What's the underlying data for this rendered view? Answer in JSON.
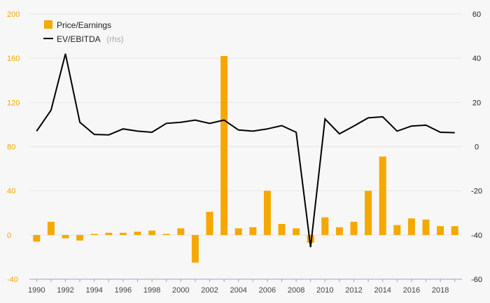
{
  "chart_data": {
    "type": "bar",
    "x": [
      1990,
      1991,
      1992,
      1993,
      1994,
      1995,
      1996,
      1997,
      1998,
      1999,
      2000,
      2001,
      2002,
      2003,
      2004,
      2005,
      2006,
      2007,
      2008,
      2009,
      2010,
      2011,
      2012,
      2013,
      2014,
      2015,
      2016,
      2017,
      2018,
      2019
    ],
    "x_tick_labels": [
      "1990",
      "1992",
      "1994",
      "1996",
      "1998",
      "2000",
      "2002",
      "2004",
      "2006",
      "2008",
      "2010",
      "2012",
      "2014",
      "2016",
      "2018"
    ],
    "series": [
      {
        "name": "Price/Earnings",
        "type": "bar",
        "axis": "left",
        "color": "#f5a800",
        "values": [
          -6,
          12,
          -3,
          -5,
          1,
          2,
          2,
          3,
          4,
          1,
          6,
          -25,
          21,
          162,
          6,
          7,
          40,
          10,
          6,
          -7,
          16,
          7,
          12,
          40,
          71,
          9,
          15,
          14,
          8,
          8
        ]
      },
      {
        "name": "EV/EBITDA",
        "name_suffix": "(rhs)",
        "type": "line",
        "axis": "right",
        "color": "#000000",
        "values": [
          7,
          16.5,
          42,
          11,
          5.5,
          5.3,
          8,
          7,
          6.5,
          10.5,
          11,
          12,
          10.5,
          12,
          7.5,
          7,
          8,
          9.5,
          6.5,
          -45.5,
          12.5,
          5.8,
          9.3,
          13,
          13.5,
          7,
          9.3,
          9.7,
          6.5,
          6.3
        ]
      }
    ],
    "ylim_left": [
      -40,
      200
    ],
    "yticks_left": [
      "-40",
      "0",
      "40",
      "80",
      "120",
      "160",
      "200"
    ],
    "ylim_right": [
      -60,
      60
    ],
    "yticks_right": [
      "-60",
      "-40",
      "-20",
      "0",
      "20",
      "40",
      "60"
    ],
    "grid": "horizontal",
    "legend_position": "top-left"
  }
}
